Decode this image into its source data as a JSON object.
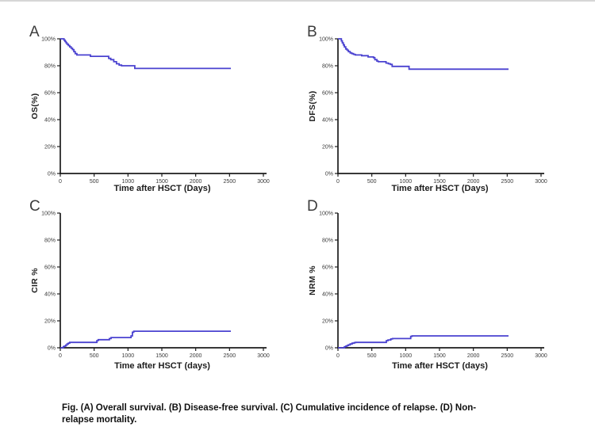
{
  "figure": {
    "caption_lines": [
      "Fig. (A) Overall survival. (B) Disease-free survival. (C) Cumulative incidence of relapse. (D) Non-",
      "relapse mortality."
    ]
  },
  "style": {
    "curve_color": "#4a42d0",
    "axis_color": "#1c1c1c",
    "tick_label_color": "#3a3a3a"
  },
  "chart_data": [
    {
      "panel": "A",
      "type": "line",
      "subtype": "kaplan-meier-step",
      "title": "Overall survival",
      "ylabel": "OS(%)",
      "xlabel": "Time after HSCT (Days)",
      "xlim": [
        0,
        3000
      ],
      "ylim": [
        0,
        100
      ],
      "x_ticks": [
        0,
        500,
        1000,
        1500,
        2000,
        2500,
        3000
      ],
      "y_tick_values": [
        0,
        20,
        40,
        60,
        80,
        100
      ],
      "y_tick_labels": [
        "0%",
        "20%",
        "40%",
        "60%",
        "80%",
        "100%"
      ],
      "grid": false,
      "legend": "none",
      "points": [
        [
          0,
          100
        ],
        [
          40,
          100
        ],
        [
          55,
          99
        ],
        [
          70,
          98
        ],
        [
          85,
          97
        ],
        [
          100,
          96
        ],
        [
          120,
          95
        ],
        [
          140,
          94
        ],
        [
          160,
          93
        ],
        [
          180,
          92
        ],
        [
          200,
          90.5
        ],
        [
          220,
          89
        ],
        [
          245,
          88
        ],
        [
          420,
          88
        ],
        [
          445,
          87
        ],
        [
          695,
          87
        ],
        [
          715,
          85.5
        ],
        [
          745,
          84.5
        ],
        [
          790,
          83
        ],
        [
          830,
          81.5
        ],
        [
          870,
          80.5
        ],
        [
          905,
          80
        ],
        [
          1080,
          80
        ],
        [
          1100,
          78
        ],
        [
          2520,
          78
        ]
      ]
    },
    {
      "panel": "B",
      "type": "line",
      "subtype": "kaplan-meier-step",
      "title": "Disease-free survival",
      "ylabel": "DFS(%)",
      "xlabel": "Time after HSCT (Days)",
      "xlim": [
        0,
        3000
      ],
      "ylim": [
        0,
        100
      ],
      "x_ticks": [
        0,
        500,
        1000,
        1500,
        2000,
        2500,
        3000
      ],
      "y_tick_values": [
        0,
        20,
        40,
        60,
        80,
        100
      ],
      "y_tick_labels": [
        "0%",
        "20%",
        "40%",
        "60%",
        "80%",
        "100%"
      ],
      "grid": false,
      "legend": "none",
      "points": [
        [
          0,
          100
        ],
        [
          35,
          100
        ],
        [
          50,
          98.5
        ],
        [
          65,
          97
        ],
        [
          80,
          95.5
        ],
        [
          95,
          94
        ],
        [
          115,
          92.5
        ],
        [
          135,
          91.5
        ],
        [
          155,
          90.5
        ],
        [
          180,
          89.5
        ],
        [
          205,
          89
        ],
        [
          230,
          88.5
        ],
        [
          255,
          88
        ],
        [
          330,
          88
        ],
        [
          350,
          87.5
        ],
        [
          425,
          87.5
        ],
        [
          445,
          86.5
        ],
        [
          525,
          86
        ],
        [
          545,
          84.5
        ],
        [
          575,
          83.5
        ],
        [
          595,
          83
        ],
        [
          690,
          83
        ],
        [
          710,
          82
        ],
        [
          745,
          81.5
        ],
        [
          775,
          81
        ],
        [
          800,
          79.5
        ],
        [
          1030,
          79.5
        ],
        [
          1050,
          77.5
        ],
        [
          2520,
          77.5
        ]
      ]
    },
    {
      "panel": "C",
      "type": "line",
      "subtype": "cumulative-incidence-step",
      "title": "Cumulative incidence of relapse",
      "ylabel": "CIR %",
      "xlabel": "Time after HSCT (days)",
      "xlim": [
        0,
        3000
      ],
      "ylim": [
        0,
        100
      ],
      "x_ticks": [
        0,
        500,
        1000,
        1500,
        2000,
        2500,
        3000
      ],
      "y_tick_values": [
        0,
        20,
        40,
        60,
        80,
        100
      ],
      "y_tick_labels": [
        "0%",
        "20%",
        "40%",
        "60%",
        "80%",
        "100%"
      ],
      "grid": false,
      "legend": "none",
      "points": [
        [
          0,
          0
        ],
        [
          30,
          0
        ],
        [
          45,
          0.8
        ],
        [
          60,
          1.2
        ],
        [
          80,
          2
        ],
        [
          100,
          2.8
        ],
        [
          120,
          3.5
        ],
        [
          140,
          4
        ],
        [
          515,
          4
        ],
        [
          540,
          5.3
        ],
        [
          560,
          6
        ],
        [
          705,
          6
        ],
        [
          725,
          6.8
        ],
        [
          750,
          7.6
        ],
        [
          1020,
          7.6
        ],
        [
          1045,
          8.8
        ],
        [
          1065,
          11.5
        ],
        [
          1085,
          12.3
        ],
        [
          2520,
          12.3
        ]
      ]
    },
    {
      "panel": "D",
      "type": "line",
      "subtype": "cumulative-incidence-step",
      "title": "Non-relapse mortality",
      "ylabel": "NRM %",
      "xlabel": "Time after HSCT (days)",
      "xlim": [
        0,
        3000
      ],
      "ylim": [
        0,
        100
      ],
      "x_ticks": [
        0,
        500,
        1000,
        1500,
        2000,
        2500,
        3000
      ],
      "y_tick_values": [
        0,
        20,
        40,
        60,
        80,
        100
      ],
      "y_tick_labels": [
        "0%",
        "20%",
        "40%",
        "60%",
        "80%",
        "100%"
      ],
      "grid": false,
      "legend": "none",
      "points": [
        [
          0,
          0
        ],
        [
          80,
          0
        ],
        [
          95,
          0.7
        ],
        [
          115,
          1.2
        ],
        [
          135,
          1.7
        ],
        [
          155,
          2.2
        ],
        [
          180,
          2.8
        ],
        [
          210,
          3.4
        ],
        [
          240,
          3.8
        ],
        [
          260,
          4
        ],
        [
          695,
          4
        ],
        [
          715,
          5.3
        ],
        [
          740,
          5.8
        ],
        [
          780,
          6.5
        ],
        [
          805,
          6.8
        ],
        [
          1055,
          6.8
        ],
        [
          1075,
          8.5
        ],
        [
          1095,
          8.8
        ],
        [
          2520,
          8.8
        ]
      ]
    }
  ]
}
